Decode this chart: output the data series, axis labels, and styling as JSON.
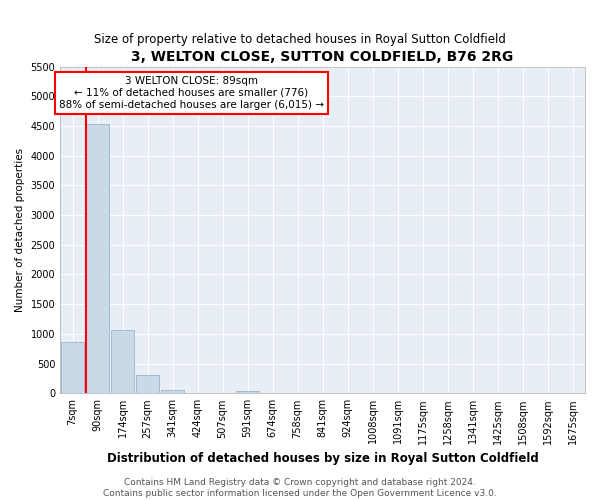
{
  "title1": "3, WELTON CLOSE, SUTTON COLDFIELD, B76 2RG",
  "title2": "Size of property relative to detached houses in Royal Sutton Coldfield",
  "xlabel": "Distribution of detached houses by size in Royal Sutton Coldfield",
  "ylabel": "Number of detached properties",
  "categories": [
    "7sqm",
    "90sqm",
    "174sqm",
    "257sqm",
    "341sqm",
    "424sqm",
    "507sqm",
    "591sqm",
    "674sqm",
    "758sqm",
    "841sqm",
    "924sqm",
    "1008sqm",
    "1091sqm",
    "1175sqm",
    "1258sqm",
    "1341sqm",
    "1425sqm",
    "1508sqm",
    "1592sqm",
    "1675sqm"
  ],
  "values": [
    870,
    4530,
    1060,
    300,
    50,
    8,
    0,
    35,
    0,
    0,
    0,
    0,
    0,
    0,
    0,
    0,
    0,
    0,
    0,
    0,
    0
  ],
  "bar_color": "#c9d9e8",
  "bar_edgecolor": "#9ab4cc",
  "vline_color": "red",
  "annotation_text": "3 WELTON CLOSE: 89sqm\n← 11% of detached houses are smaller (776)\n88% of semi-detached houses are larger (6,015) →",
  "annotation_box_color": "white",
  "annotation_box_edgecolor": "red",
  "ylim": [
    0,
    5500
  ],
  "yticks": [
    0,
    500,
    1000,
    1500,
    2000,
    2500,
    3000,
    3500,
    4000,
    4500,
    5000,
    5500
  ],
  "footnote": "Contains HM Land Registry data © Crown copyright and database right 2024.\nContains public sector information licensed under the Open Government Licence v3.0.",
  "plot_bg_color": "#e8eef5",
  "fig_bg_color": "#ffffff",
  "grid_color": "#ffffff",
  "title1_fontsize": 10,
  "title2_fontsize": 8.5,
  "xlabel_fontsize": 8.5,
  "ylabel_fontsize": 7.5,
  "tick_fontsize": 7,
  "footnote_fontsize": 6.5
}
